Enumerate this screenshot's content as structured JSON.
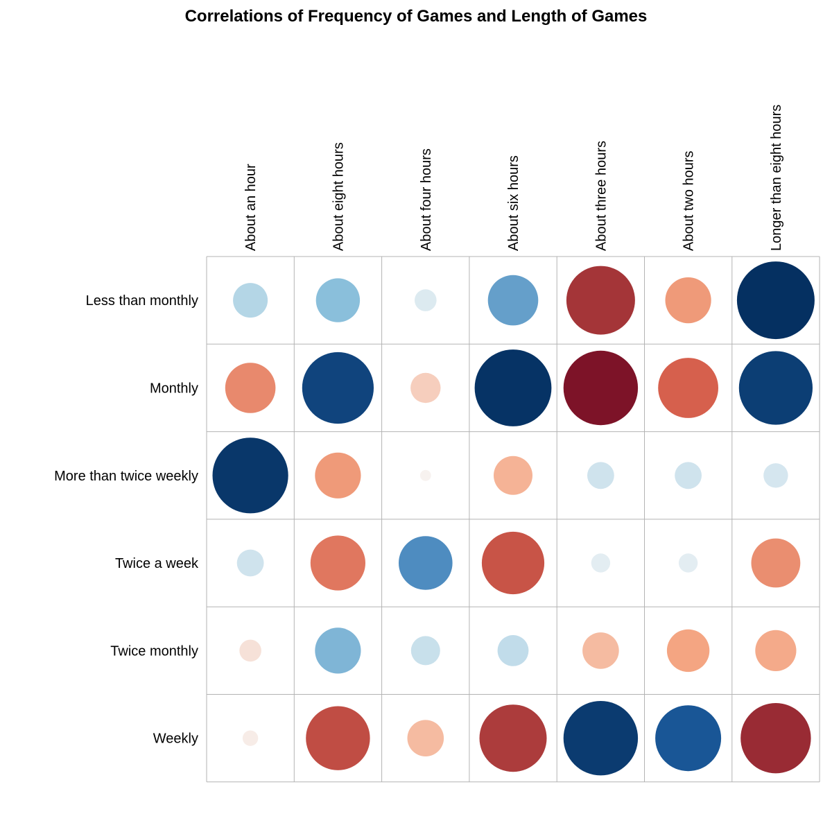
{
  "chart_data": {
    "type": "heatmap",
    "title": "Correlations of Frequency of Games and Length of Games",
    "columns": [
      "About an hour",
      "About eight hours",
      "About four hours",
      "About six hours",
      "About three hours",
      "About two hours",
      "Longer than eight hours"
    ],
    "rows": [
      "Less than monthly",
      "Monthly",
      "More than twice weekly",
      "Twice a week",
      "Twice monthly",
      "Weekly"
    ],
    "values": [
      [
        -0.2,
        -0.32,
        -0.08,
        -0.42,
        0.78,
        0.35,
        -1.0
      ],
      [
        0.42,
        -0.85,
        0.15,
        -0.98,
        0.92,
        0.6,
        -0.9
      ],
      [
        -0.95,
        0.35,
        0.02,
        0.25,
        -0.12,
        -0.12,
        -0.1
      ],
      [
        -0.12,
        0.5,
        -0.48,
        0.65,
        -0.06,
        -0.06,
        0.4
      ],
      [
        0.08,
        -0.35,
        -0.14,
        -0.16,
        0.22,
        0.3,
        0.28
      ],
      [
        0.04,
        0.68,
        0.22,
        0.75,
        -0.92,
        -0.72,
        0.82
      ]
    ],
    "value_range": [
      -1,
      1
    ],
    "grid": true,
    "legend": "none",
    "color_scale": {
      "negative_strong": "#053061",
      "negative_mid": "#2166ac",
      "negative_light": "#92c5de",
      "neutral": "#f7f7f7",
      "positive_light": "#f4a582",
      "positive_mid": "#d6604d",
      "positive_strong": "#67001f"
    }
  }
}
